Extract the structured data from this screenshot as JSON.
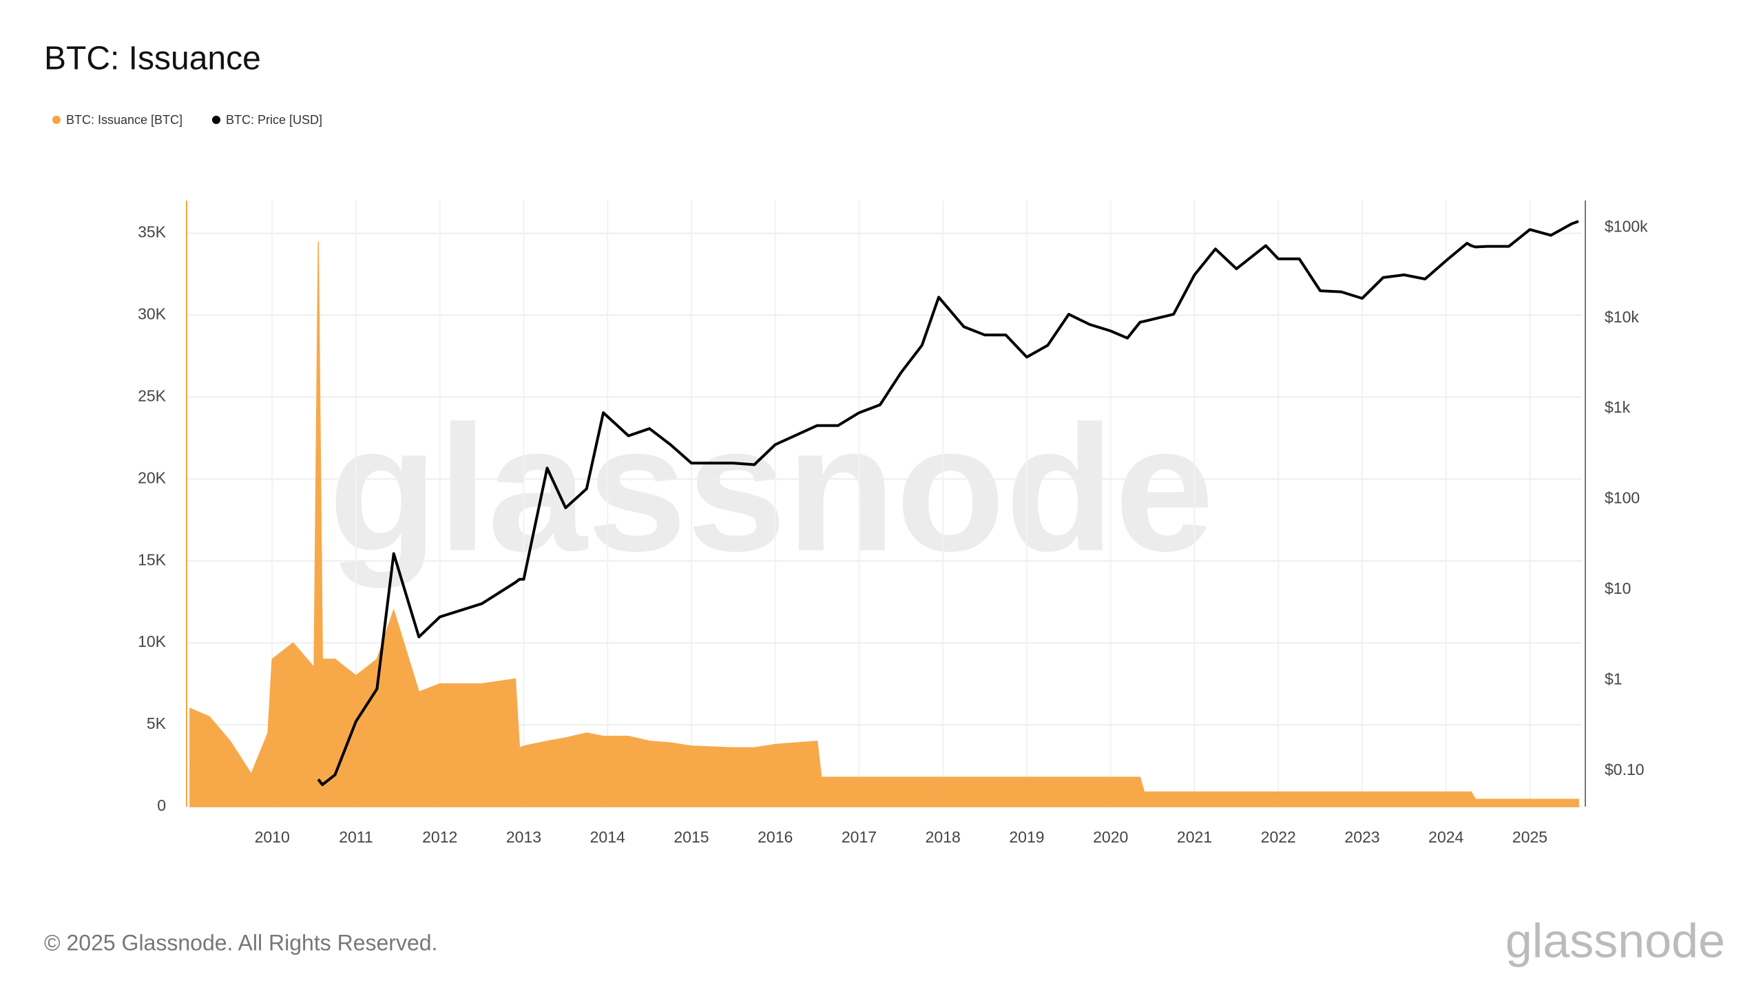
{
  "chart_data": {
    "type": "area_line",
    "title": "BTC: Issuance",
    "watermark": "glassnode",
    "footer": "© 2025 Glassnode. All Rights Reserved.",
    "logo": "glassnode",
    "x": [
      2009.02,
      2009.25,
      2009.5,
      2009.75,
      2009.95,
      2010.0,
      2010.25,
      2010.5,
      2010.55,
      2010.6,
      2010.75,
      2011.0,
      2011.25,
      2011.45,
      2011.75,
      2012.0,
      2012.5,
      2012.9,
      2012.95,
      2013.0,
      2013.28,
      2013.5,
      2013.75,
      2013.95,
      2014.25,
      2014.5,
      2014.75,
      2015.0,
      2015.5,
      2015.75,
      2016.0,
      2016.5,
      2016.55,
      2016.75,
      2017.0,
      2017.25,
      2017.5,
      2017.75,
      2017.95,
      2018.25,
      2018.5,
      2018.75,
      2019.0,
      2019.25,
      2019.5,
      2019.75,
      2020.0,
      2020.2,
      2020.35,
      2020.4,
      2020.75,
      2021.0,
      2021.25,
      2021.5,
      2021.85,
      2022.0,
      2022.25,
      2022.5,
      2022.75,
      2023.0,
      2023.25,
      2023.5,
      2023.75,
      2024.0,
      2024.25,
      2024.3,
      2024.35,
      2024.5,
      2024.75,
      2025.0,
      2025.25,
      2025.5,
      2025.58
    ],
    "series": [
      {
        "name": "BTC: Issuance [BTC]",
        "color": "#f7a541",
        "axis": "y",
        "values": [
          6000,
          5500,
          4000,
          2000,
          4500,
          9000,
          10000,
          8500,
          34500,
          9000,
          9000,
          8000,
          9000,
          12000,
          7000,
          7500,
          7500,
          7800,
          3600,
          3700,
          4000,
          4200,
          4500,
          4300,
          4300,
          4000,
          3900,
          3700,
          3600,
          3600,
          3800,
          4000,
          1800,
          1800,
          1800,
          1800,
          1800,
          1800,
          1800,
          1800,
          1800,
          1800,
          1800,
          1800,
          1800,
          1800,
          1800,
          1800,
          1800,
          900,
          900,
          900,
          900,
          900,
          900,
          900,
          900,
          900,
          900,
          900,
          900,
          900,
          900,
          900,
          900,
          900,
          450,
          450,
          450,
          450,
          450,
          450,
          450
        ]
      },
      {
        "name": "BTC: Price [USD]",
        "color": "#000000",
        "axis": "y2",
        "values": [
          null,
          null,
          null,
          null,
          null,
          null,
          null,
          null,
          0.08,
          0.07,
          0.09,
          0.35,
          0.8,
          25,
          3,
          5,
          7,
          12,
          13,
          13,
          220,
          80,
          130,
          900,
          500,
          600,
          400,
          250,
          250,
          240,
          400,
          650,
          650,
          650,
          900,
          1100,
          2500,
          5000,
          17000,
          8000,
          6500,
          6500,
          3700,
          5000,
          11000,
          8500,
          7200,
          6000,
          9000,
          9200,
          11000,
          30000,
          58000,
          35000,
          63000,
          45000,
          45000,
          20000,
          19500,
          16500,
          28000,
          30000,
          27000,
          43000,
          67000,
          63000,
          61000,
          62000,
          62000,
          95000,
          82000,
          110000,
          117000
        ]
      }
    ],
    "xlim": [
      2008.98,
      2025.62
    ],
    "xticks": [
      2010,
      2011,
      2012,
      2013,
      2014,
      2015,
      2016,
      2017,
      2018,
      2019,
      2020,
      2021,
      2022,
      2023,
      2024,
      2025
    ],
    "ylim": [
      0,
      37000
    ],
    "yticks": [
      0,
      {
        "value": 5000,
        "label": "5K"
      },
      {
        "value": 10000,
        "label": "10K"
      },
      {
        "value": 15000,
        "label": "15K"
      },
      {
        "value": 20000,
        "label": "20K"
      },
      {
        "value": 25000,
        "label": "25K"
      },
      {
        "value": 30000,
        "label": "30K"
      },
      {
        "value": 35000,
        "label": "35K"
      }
    ],
    "y2lim": [
      0.04,
      199000
    ],
    "y2log": true,
    "y2ticks": [
      {
        "value": 0.1,
        "label": "$0.10"
      },
      {
        "value": 1,
        "label": "$1"
      },
      {
        "value": 10,
        "label": "$10"
      },
      {
        "value": 100,
        "label": "$100"
      },
      {
        "value": 1000,
        "label": "$1k"
      },
      {
        "value": 10000,
        "label": "$10k"
      },
      {
        "value": 100000,
        "label": "$100k"
      }
    ],
    "grid": true,
    "legend": "top-left"
  }
}
